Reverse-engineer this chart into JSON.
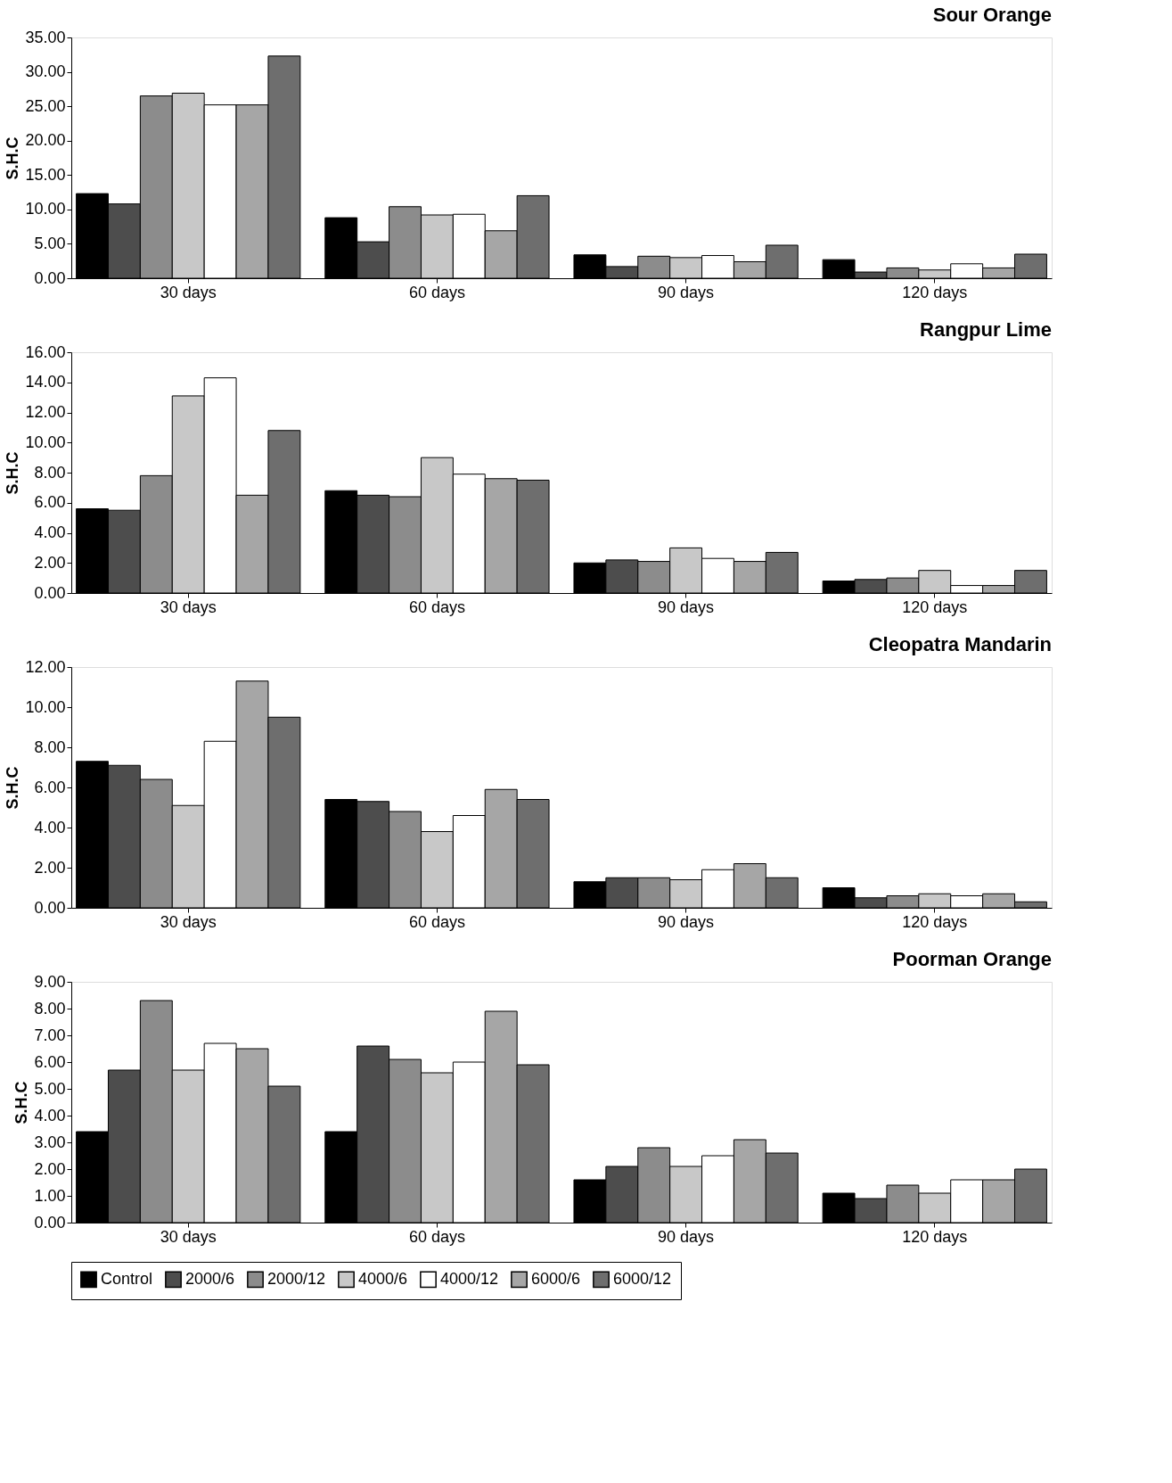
{
  "chart_data": [
    {
      "type": "bar",
      "title": "Sour Orange",
      "ylabel": "S.H.C",
      "categories": [
        "30 days",
        "60 days",
        "90 days",
        "120 days"
      ],
      "ylim": [
        0,
        35
      ],
      "yticks": [
        {
          "value": 0,
          "label": "0.00"
        },
        {
          "value": 5,
          "label": "5.00"
        },
        {
          "value": 10,
          "label": "10.00"
        },
        {
          "value": 15,
          "label": "15.00"
        },
        {
          "value": 20,
          "label": "20.00"
        },
        {
          "value": 25,
          "label": "25.00"
        },
        {
          "value": 30,
          "label": "30.00"
        },
        {
          "value": 35,
          "label": "35.00"
        }
      ],
      "grid": false,
      "legend": "bottom",
      "series": [
        {
          "name": "Control",
          "color": "#000000",
          "values": [
            12.3,
            8.8,
            3.4,
            2.7
          ]
        },
        {
          "name": "2000/6",
          "color": "#4d4d4d",
          "values": [
            10.8,
            5.3,
            1.7,
            0.9
          ]
        },
        {
          "name": "2000/12",
          "color": "#8c8c8c",
          "values": [
            26.5,
            10.4,
            3.2,
            1.5
          ]
        },
        {
          "name": "4000/6",
          "color": "#c8c8c8",
          "values": [
            26.9,
            9.2,
            3.0,
            1.2
          ]
        },
        {
          "name": "4000/12",
          "color": "#ffffff",
          "values": [
            25.2,
            9.3,
            3.3,
            2.1
          ]
        },
        {
          "name": "6000/6",
          "color": "#a6a6a6",
          "values": [
            25.2,
            6.9,
            2.4,
            1.5
          ]
        },
        {
          "name": "6000/12",
          "color": "#6e6e6e",
          "values": [
            32.3,
            12.0,
            4.8,
            3.5
          ]
        }
      ]
    },
    {
      "type": "bar",
      "title": "Rangpur Lime",
      "ylabel": "S.H.C",
      "categories": [
        "30 days",
        "60 days",
        "90 days",
        "120 days"
      ],
      "ylim": [
        0,
        16
      ],
      "yticks": [
        {
          "value": 0,
          "label": "0.00"
        },
        {
          "value": 2,
          "label": "2.00"
        },
        {
          "value": 4,
          "label": "4.00"
        },
        {
          "value": 6,
          "label": "6.00"
        },
        {
          "value": 8,
          "label": "8.00"
        },
        {
          "value": 10,
          "label": "10.00"
        },
        {
          "value": 12,
          "label": "12.00"
        },
        {
          "value": 14,
          "label": "14.00"
        },
        {
          "value": 16,
          "label": "16.00"
        }
      ],
      "grid": false,
      "legend": "bottom",
      "series": [
        {
          "name": "Control",
          "color": "#000000",
          "values": [
            5.6,
            6.8,
            2.0,
            0.8
          ]
        },
        {
          "name": "2000/6",
          "color": "#4d4d4d",
          "values": [
            5.5,
            6.5,
            2.2,
            0.9
          ]
        },
        {
          "name": "2000/12",
          "color": "#8c8c8c",
          "values": [
            7.8,
            6.4,
            2.1,
            1.0
          ]
        },
        {
          "name": "4000/6",
          "color": "#c8c8c8",
          "values": [
            13.1,
            9.0,
            3.0,
            1.5
          ]
        },
        {
          "name": "4000/12",
          "color": "#ffffff",
          "values": [
            14.3,
            7.9,
            2.3,
            0.5
          ]
        },
        {
          "name": "6000/6",
          "color": "#a6a6a6",
          "values": [
            6.5,
            7.6,
            2.1,
            0.5
          ]
        },
        {
          "name": "6000/12",
          "color": "#6e6e6e",
          "values": [
            10.8,
            7.5,
            2.7,
            1.5
          ]
        }
      ]
    },
    {
      "type": "bar",
      "title": "Cleopatra Mandarin",
      "ylabel": "S.H.C",
      "categories": [
        "30 days",
        "60 days",
        "90 days",
        "120 days"
      ],
      "ylim": [
        0,
        12
      ],
      "yticks": [
        {
          "value": 0,
          "label": "0.00"
        },
        {
          "value": 2,
          "label": "2.00"
        },
        {
          "value": 4,
          "label": "4.00"
        },
        {
          "value": 6,
          "label": "6.00"
        },
        {
          "value": 8,
          "label": "8.00"
        },
        {
          "value": 10,
          "label": "10.00"
        },
        {
          "value": 12,
          "label": "12.00"
        }
      ],
      "grid": false,
      "legend": "bottom",
      "series": [
        {
          "name": "Control",
          "color": "#000000",
          "values": [
            7.3,
            5.4,
            1.3,
            1.0
          ]
        },
        {
          "name": "2000/6",
          "color": "#4d4d4d",
          "values": [
            7.1,
            5.3,
            1.5,
            0.5
          ]
        },
        {
          "name": "2000/12",
          "color": "#8c8c8c",
          "values": [
            6.4,
            4.8,
            1.5,
            0.6
          ]
        },
        {
          "name": "4000/6",
          "color": "#c8c8c8",
          "values": [
            5.1,
            3.8,
            1.4,
            0.7
          ]
        },
        {
          "name": "4000/12",
          "color": "#ffffff",
          "values": [
            8.3,
            4.6,
            1.9,
            0.6
          ]
        },
        {
          "name": "6000/6",
          "color": "#a6a6a6",
          "values": [
            11.3,
            5.9,
            2.2,
            0.7
          ]
        },
        {
          "name": "6000/12",
          "color": "#6e6e6e",
          "values": [
            9.5,
            5.4,
            1.5,
            0.3
          ]
        }
      ]
    },
    {
      "type": "bar",
      "title": "Poorman Orange",
      "ylabel": "S.H.C",
      "categories": [
        "30 days",
        "60 days",
        "90 days",
        "120 days"
      ],
      "ylim": [
        0,
        9
      ],
      "yticks": [
        {
          "value": 0,
          "label": "0.00"
        },
        {
          "value": 1,
          "label": "1.00"
        },
        {
          "value": 2,
          "label": "2.00"
        },
        {
          "value": 3,
          "label": "3.00"
        },
        {
          "value": 4,
          "label": "4.00"
        },
        {
          "value": 5,
          "label": "5.00"
        },
        {
          "value": 6,
          "label": "6.00"
        },
        {
          "value": 7,
          "label": "7.00"
        },
        {
          "value": 8,
          "label": "8.00"
        },
        {
          "value": 9,
          "label": "9.00"
        }
      ],
      "grid": false,
      "legend": "bottom",
      "series": [
        {
          "name": "Control",
          "color": "#000000",
          "values": [
            3.4,
            3.4,
            1.6,
            1.1
          ]
        },
        {
          "name": "2000/6",
          "color": "#4d4d4d",
          "values": [
            5.7,
            6.6,
            2.1,
            0.9
          ]
        },
        {
          "name": "2000/12",
          "color": "#8c8c8c",
          "values": [
            8.3,
            6.1,
            2.8,
            1.4
          ]
        },
        {
          "name": "4000/6",
          "color": "#c8c8c8",
          "values": [
            5.7,
            5.6,
            2.1,
            1.1
          ]
        },
        {
          "name": "4000/12",
          "color": "#ffffff",
          "values": [
            6.7,
            6.0,
            2.5,
            1.6
          ]
        },
        {
          "name": "6000/6",
          "color": "#a6a6a6",
          "values": [
            6.5,
            7.9,
            3.1,
            1.6
          ]
        },
        {
          "name": "6000/12",
          "color": "#6e6e6e",
          "values": [
            5.1,
            5.9,
            2.6,
            2.0
          ]
        }
      ]
    }
  ]
}
